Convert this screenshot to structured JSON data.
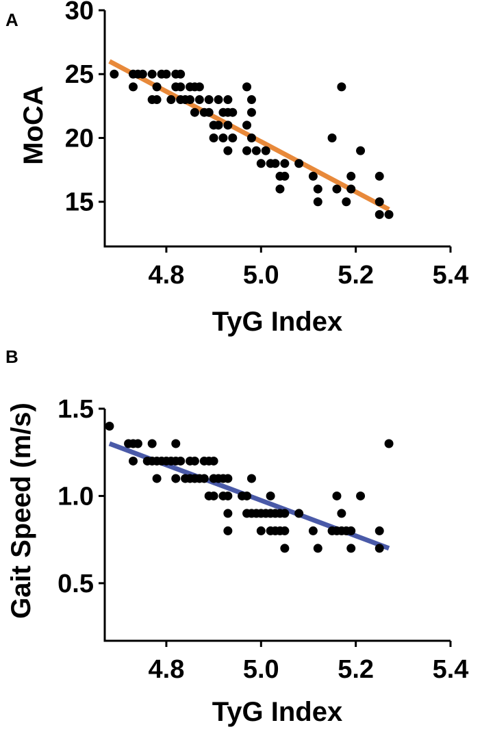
{
  "chart_data": [
    {
      "panel_label": "A",
      "type": "scatter",
      "xlabel": "TyG Index",
      "ylabel": "MoCA",
      "xlim": [
        4.67,
        5.4
      ],
      "ylim": [
        11.5,
        30
      ],
      "xticks": [
        4.8,
        5.0,
        5.2,
        5.4
      ],
      "xtick_labels": [
        "4.8",
        "5.0",
        "5.2",
        "5.4"
      ],
      "yticks": [
        15,
        20,
        25,
        30
      ],
      "ytick_labels": [
        "15",
        "20",
        "25",
        "30"
      ],
      "points": [
        [
          4.69,
          25
        ],
        [
          4.73,
          25
        ],
        [
          4.73,
          24
        ],
        [
          4.74,
          25
        ],
        [
          4.75,
          25
        ],
        [
          4.77,
          25
        ],
        [
          4.77,
          23
        ],
        [
          4.78,
          24
        ],
        [
          4.78,
          23
        ],
        [
          4.79,
          25
        ],
        [
          4.8,
          25
        ],
        [
          4.81,
          23
        ],
        [
          4.82,
          25
        ],
        [
          4.82,
          24
        ],
        [
          4.83,
          25
        ],
        [
          4.83,
          24
        ],
        [
          4.83,
          23
        ],
        [
          4.84,
          23
        ],
        [
          4.85,
          24
        ],
        [
          4.85,
          23
        ],
        [
          4.86,
          24
        ],
        [
          4.86,
          22
        ],
        [
          4.87,
          23
        ],
        [
          4.87,
          24
        ],
        [
          4.88,
          22
        ],
        [
          4.89,
          23
        ],
        [
          4.89,
          22
        ],
        [
          4.9,
          21
        ],
        [
          4.9,
          20
        ],
        [
          4.91,
          23
        ],
        [
          4.91,
          21
        ],
        [
          4.92,
          22
        ],
        [
          4.92,
          20
        ],
        [
          4.93,
          23
        ],
        [
          4.93,
          22
        ],
        [
          4.93,
          21
        ],
        [
          4.93,
          19
        ],
        [
          4.94,
          22
        ],
        [
          4.94,
          20
        ],
        [
          4.97,
          24
        ],
        [
          4.97,
          21
        ],
        [
          4.97,
          19
        ],
        [
          4.98,
          23
        ],
        [
          4.98,
          22
        ],
        [
          4.98,
          20
        ],
        [
          4.99,
          19
        ],
        [
          5.0,
          18
        ],
        [
          5.01,
          19
        ],
        [
          5.02,
          18
        ],
        [
          5.03,
          18
        ],
        [
          5.04,
          17
        ],
        [
          5.04,
          16
        ],
        [
          5.05,
          18
        ],
        [
          5.05,
          17
        ],
        [
          5.08,
          18
        ],
        [
          5.11,
          17
        ],
        [
          5.12,
          16
        ],
        [
          5.12,
          15
        ],
        [
          5.15,
          20
        ],
        [
          5.16,
          16
        ],
        [
          5.17,
          24
        ],
        [
          5.18,
          15
        ],
        [
          5.19,
          17
        ],
        [
          5.19,
          16
        ],
        [
          5.21,
          19
        ],
        [
          5.25,
          17
        ],
        [
          5.25,
          15
        ],
        [
          5.25,
          14
        ],
        [
          5.27,
          14
        ]
      ],
      "regression": {
        "x": [
          4.68,
          5.27
        ],
        "y": [
          26.0,
          14.4
        ]
      },
      "regression_color": "#E8893A"
    },
    {
      "panel_label": "B",
      "type": "scatter",
      "xlabel": "TyG Index",
      "ylabel": "Gait Speed (m/s)",
      "xlim": [
        4.67,
        5.4
      ],
      "ylim": [
        0.17,
        1.5
      ],
      "xticks": [
        4.8,
        5.0,
        5.2,
        5.4
      ],
      "xtick_labels": [
        "4.8",
        "5.0",
        "5.2",
        "5.4"
      ],
      "yticks": [
        0.5,
        1.0,
        1.5
      ],
      "ytick_labels": [
        "0.5",
        "1.0",
        "1.5"
      ],
      "points": [
        [
          4.68,
          1.4
        ],
        [
          4.72,
          1.3
        ],
        [
          4.73,
          1.3
        ],
        [
          4.74,
          1.3
        ],
        [
          4.73,
          1.2
        ],
        [
          4.76,
          1.2
        ],
        [
          4.77,
          1.3
        ],
        [
          4.77,
          1.2
        ],
        [
          4.78,
          1.2
        ],
        [
          4.78,
          1.1
        ],
        [
          4.79,
          1.2
        ],
        [
          4.8,
          1.2
        ],
        [
          4.81,
          1.2
        ],
        [
          4.82,
          1.3
        ],
        [
          4.82,
          1.2
        ],
        [
          4.82,
          1.1
        ],
        [
          4.83,
          1.2
        ],
        [
          4.84,
          1.1
        ],
        [
          4.85,
          1.2
        ],
        [
          4.85,
          1.1
        ],
        [
          4.86,
          1.2
        ],
        [
          4.86,
          1.1
        ],
        [
          4.87,
          1.1
        ],
        [
          4.88,
          1.2
        ],
        [
          4.88,
          1.1
        ],
        [
          4.89,
          1.2
        ],
        [
          4.89,
          1.0
        ],
        [
          4.9,
          1.2
        ],
        [
          4.9,
          1.1
        ],
        [
          4.9,
          1.0
        ],
        [
          4.91,
          1.1
        ],
        [
          4.92,
          1.1
        ],
        [
          4.92,
          1.0
        ],
        [
          4.93,
          1.1
        ],
        [
          4.93,
          1.0
        ],
        [
          4.93,
          0.9
        ],
        [
          4.93,
          0.8
        ],
        [
          4.96,
          1.0
        ],
        [
          4.97,
          1.0
        ],
        [
          4.97,
          0.9
        ],
        [
          4.98,
          1.1
        ],
        [
          4.98,
          0.9
        ],
        [
          4.99,
          0.9
        ],
        [
          5.0,
          0.9
        ],
        [
          5.0,
          0.8
        ],
        [
          5.01,
          0.9
        ],
        [
          5.02,
          1.0
        ],
        [
          5.02,
          0.9
        ],
        [
          5.02,
          0.8
        ],
        [
          5.03,
          0.9
        ],
        [
          5.03,
          0.8
        ],
        [
          5.04,
          0.9
        ],
        [
          5.04,
          0.8
        ],
        [
          5.05,
          0.9
        ],
        [
          5.05,
          0.8
        ],
        [
          5.05,
          0.7
        ],
        [
          5.08,
          0.9
        ],
        [
          5.11,
          0.8
        ],
        [
          5.12,
          0.7
        ],
        [
          5.15,
          0.8
        ],
        [
          5.16,
          1.0
        ],
        [
          5.16,
          0.8
        ],
        [
          5.17,
          0.9
        ],
        [
          5.17,
          0.8
        ],
        [
          5.18,
          0.8
        ],
        [
          5.19,
          0.8
        ],
        [
          5.19,
          0.7
        ],
        [
          5.21,
          1.0
        ],
        [
          5.25,
          0.8
        ],
        [
          5.25,
          0.7
        ],
        [
          5.27,
          1.3
        ]
      ],
      "regression": {
        "x": [
          4.68,
          5.27
        ],
        "y": [
          1.3,
          0.7
        ]
      },
      "regression_color": "#4A5AA8"
    }
  ]
}
